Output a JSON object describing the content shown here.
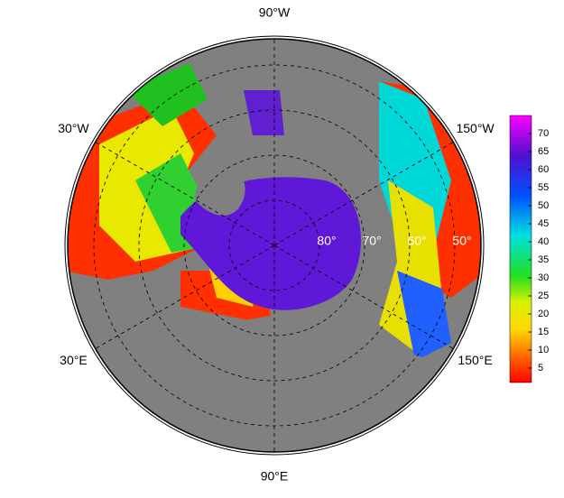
{
  "longitude_labels": [
    {
      "value": -90,
      "label": "90°W"
    },
    {
      "value": -30,
      "label": "30°W"
    },
    {
      "value": -150,
      "label": "150°W"
    },
    {
      "value": 30,
      "label": "30°E"
    },
    {
      "value": 150,
      "label": "150°E"
    },
    {
      "value": 90,
      "label": "90°E"
    }
  ],
  "latitude_labels": [
    {
      "value": 80,
      "label": "80°"
    },
    {
      "value": 70,
      "label": "70°"
    },
    {
      "value": 60,
      "label": "60°"
    },
    {
      "value": 50,
      "label": "50°"
    }
  ],
  "colorbar": {
    "lim": [
      1,
      75
    ],
    "ticks": [
      5,
      10,
      15,
      20,
      25,
      30,
      35,
      40,
      45,
      50,
      55,
      60,
      65,
      70
    ]
  }
}
